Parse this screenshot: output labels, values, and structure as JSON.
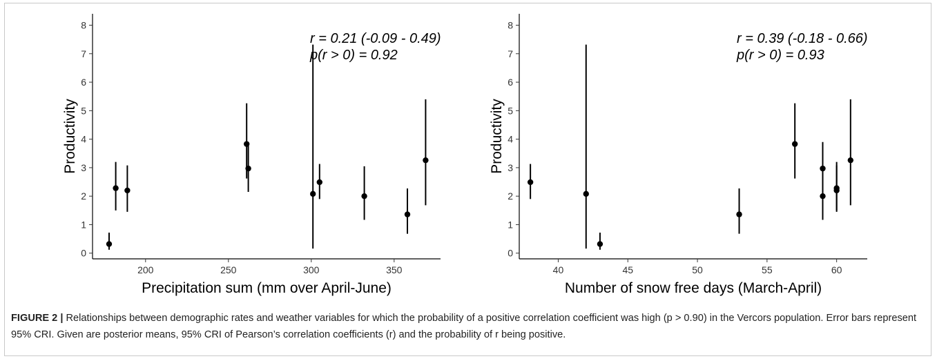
{
  "chart_data": [
    {
      "type": "scatter",
      "xlabel": "Precipitation sum (mm over April-June)",
      "ylabel": "Productivity",
      "xlim": [
        168,
        378
      ],
      "ylim": [
        -0.2,
        8.4
      ],
      "xticks": [
        200,
        250,
        300,
        350
      ],
      "yticks": [
        0,
        1,
        2,
        3,
        4,
        5,
        6,
        7,
        8
      ],
      "annotation": [
        "r = 0.21 (-0.09 - 0.49)",
        "p(r > 0) = 0.92"
      ],
      "points": [
        {
          "x": 178,
          "y": 0.32,
          "lo": 0.12,
          "hi": 0.72
        },
        {
          "x": 182,
          "y": 2.28,
          "lo": 1.5,
          "hi": 3.2
        },
        {
          "x": 189,
          "y": 2.2,
          "lo": 1.45,
          "hi": 3.08
        },
        {
          "x": 261,
          "y": 3.83,
          "lo": 2.62,
          "hi": 5.26
        },
        {
          "x": 262,
          "y": 2.97,
          "lo": 2.15,
          "hi": 3.88
        },
        {
          "x": 301,
          "y": 2.08,
          "lo": 0.16,
          "hi": 7.32
        },
        {
          "x": 305,
          "y": 2.49,
          "lo": 1.9,
          "hi": 3.13
        },
        {
          "x": 332,
          "y": 2.0,
          "lo": 1.17,
          "hi": 3.05
        },
        {
          "x": 358,
          "y": 1.36,
          "lo": 0.68,
          "hi": 2.27
        },
        {
          "x": 369,
          "y": 3.26,
          "lo": 1.68,
          "hi": 5.4
        }
      ]
    },
    {
      "type": "scatter",
      "xlabel": "Number of snow free days (March-April)",
      "ylabel": "Productivity",
      "xlim": [
        37.2,
        62.2
      ],
      "ylim": [
        -0.2,
        8.4
      ],
      "xticks": [
        40,
        45,
        50,
        55,
        60
      ],
      "yticks": [
        0,
        1,
        2,
        3,
        4,
        5,
        6,
        7,
        8
      ],
      "annotation": [
        "r = 0.39 (-0.18 - 0.66)",
        "p(r > 0) = 0.93"
      ],
      "points": [
        {
          "x": 38,
          "y": 2.49,
          "lo": 1.9,
          "hi": 3.13
        },
        {
          "x": 42,
          "y": 2.08,
          "lo": 0.16,
          "hi": 7.32
        },
        {
          "x": 43,
          "y": 0.32,
          "lo": 0.12,
          "hi": 0.72
        },
        {
          "x": 53,
          "y": 1.36,
          "lo": 0.68,
          "hi": 2.27
        },
        {
          "x": 57,
          "y": 3.83,
          "lo": 2.62,
          "hi": 5.26
        },
        {
          "x": 59,
          "y": 2.97,
          "lo": 2.15,
          "hi": 3.9
        },
        {
          "x": 59,
          "y": 2.0,
          "lo": 1.17,
          "hi": 3.05
        },
        {
          "x": 60,
          "y": 2.28,
          "lo": 1.5,
          "hi": 3.2
        },
        {
          "x": 60,
          "y": 2.2,
          "lo": 1.45,
          "hi": 3.08
        },
        {
          "x": 61,
          "y": 3.26,
          "lo": 1.68,
          "hi": 5.4
        }
      ]
    }
  ],
  "caption": {
    "label": "FIGURE 2 |",
    "text": "Relationships between demographic rates and weather variables for which the probability of a positive correlation coefficient was high (p > 0.90) in the Vercors population. Error bars represent 95% CRI. Given are posterior means, 95% CRI of Pearson’s correlation coefficients (r) and the probability of r being positive."
  }
}
